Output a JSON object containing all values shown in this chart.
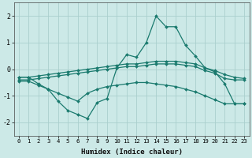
{
  "xlabel": "Humidex (Indice chaleur)",
  "xlim": [
    -0.5,
    23.5
  ],
  "ylim": [
    -2.5,
    2.5
  ],
  "yticks": [
    -2,
    -1,
    0,
    1,
    2
  ],
  "xticks": [
    0,
    1,
    2,
    3,
    4,
    5,
    6,
    7,
    8,
    9,
    10,
    11,
    12,
    13,
    14,
    15,
    16,
    17,
    18,
    19,
    20,
    21,
    22,
    23
  ],
  "bg_color": "#cce9e7",
  "grid_color": "#aacfcd",
  "line_color": "#1a7a6e",
  "line1_y": [
    -0.3,
    -0.3,
    -0.25,
    -0.2,
    -0.15,
    -0.1,
    -0.05,
    0.0,
    0.05,
    0.1,
    0.15,
    0.2,
    0.2,
    0.25,
    0.3,
    0.3,
    0.3,
    0.25,
    0.2,
    0.05,
    -0.05,
    -0.2,
    -0.3,
    -0.35
  ],
  "line2_y": [
    -0.4,
    -0.4,
    -0.35,
    -0.3,
    -0.25,
    -0.2,
    -0.15,
    -0.1,
    -0.05,
    0.0,
    0.05,
    0.1,
    0.1,
    0.15,
    0.2,
    0.2,
    0.2,
    0.15,
    0.1,
    -0.05,
    -0.15,
    -0.35,
    -0.4,
    -0.4
  ],
  "line3_y": [
    -0.45,
    -0.45,
    -0.6,
    -0.75,
    -0.9,
    -1.05,
    -1.2,
    -0.9,
    -0.75,
    -0.65,
    -0.6,
    -0.55,
    -0.5,
    -0.5,
    -0.55,
    -0.6,
    -0.65,
    -0.75,
    -0.85,
    -1.0,
    -1.15,
    -1.3,
    -1.3,
    -1.3
  ],
  "line4_y": [
    -0.3,
    -0.3,
    -0.55,
    -0.75,
    -1.2,
    -1.55,
    -1.7,
    -1.85,
    -1.25,
    -1.1,
    0.05,
    0.55,
    0.45,
    1.0,
    2.0,
    1.6,
    1.6,
    0.9,
    0.5,
    0.05,
    -0.1,
    -0.55,
    -1.3,
    -1.3
  ]
}
